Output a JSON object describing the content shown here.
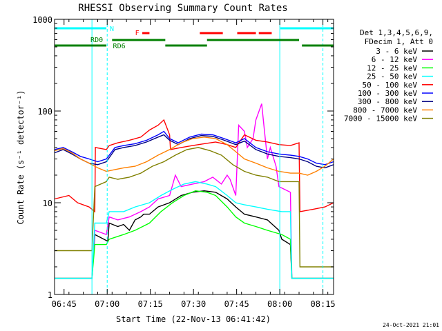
{
  "chart_data": {
    "type": "line",
    "title": "RHESSI Observing Summary Count Rates",
    "xlabel": "Start Time (22-Nov-13 06:41:42)",
    "ylabel": "Count Rate (s⁻¹ detector⁻¹)",
    "yscale": "log",
    "ylim": [
      1,
      1000
    ],
    "xlim_minutes": [
      0,
      97
    ],
    "x_ticks": [
      {
        "label": "06:45",
        "t": 3.3
      },
      {
        "label": "07:00",
        "t": 18.3
      },
      {
        "label": "07:15",
        "t": 33.3
      },
      {
        "label": "07:30",
        "t": 48.3
      },
      {
        "label": "07:45",
        "t": 63.3
      },
      {
        "label": "08:00",
        "t": 78.3
      },
      {
        "label": "08:15",
        "t": 93.3
      }
    ],
    "y_ticks": [
      {
        "label": "1",
        "v": 1
      },
      {
        "label": "10",
        "v": 10
      },
      {
        "label": "100",
        "v": 100
      },
      {
        "label": "1000",
        "v": 1000
      }
    ],
    "legend_header": [
      "Det 1,3,4,5,6,9,",
      "FDecim 1, Att 0"
    ],
    "series": [
      {
        "name": "3 - 6 keV",
        "color": "#000000",
        "values": [
          [
            0,
            1.5
          ],
          [
            13,
            1.5
          ],
          [
            14,
            4.5
          ],
          [
            18.5,
            3.8
          ],
          [
            19,
            6
          ],
          [
            22,
            5.5
          ],
          [
            24,
            5.8
          ],
          [
            26,
            5
          ],
          [
            28,
            6.5
          ],
          [
            30,
            7
          ],
          [
            31,
            7.5
          ],
          [
            33,
            7.5
          ],
          [
            36,
            9
          ],
          [
            40,
            10
          ],
          [
            44,
            12
          ],
          [
            48,
            13
          ],
          [
            52,
            13.5
          ],
          [
            56,
            13
          ],
          [
            60,
            11
          ],
          [
            63,
            9
          ],
          [
            66,
            7.5
          ],
          [
            70,
            7
          ],
          [
            74,
            6.5
          ],
          [
            78,
            5
          ],
          [
            79,
            4
          ],
          [
            82,
            3.5
          ],
          [
            82.5,
            1.5
          ],
          [
            97,
            1.5
          ]
        ]
      },
      {
        "name": "6 - 12 keV",
        "color": "#ff00ff",
        "values": [
          [
            0,
            1.5
          ],
          [
            13,
            1.5
          ],
          [
            14,
            5
          ],
          [
            18,
            4.5
          ],
          [
            19,
            7
          ],
          [
            22,
            6.5
          ],
          [
            26,
            7
          ],
          [
            30,
            8
          ],
          [
            33,
            9
          ],
          [
            36,
            11
          ],
          [
            40,
            12
          ],
          [
            42,
            20
          ],
          [
            44,
            15
          ],
          [
            48,
            16
          ],
          [
            52,
            17
          ],
          [
            55,
            19
          ],
          [
            58,
            16
          ],
          [
            60,
            20
          ],
          [
            61,
            18
          ],
          [
            63,
            12
          ],
          [
            64,
            70
          ],
          [
            66,
            60
          ],
          [
            67,
            40
          ],
          [
            69,
            50
          ],
          [
            70,
            80
          ],
          [
            72,
            120
          ],
          [
            73,
            60
          ],
          [
            74,
            30
          ],
          [
            75,
            40
          ],
          [
            77,
            25
          ],
          [
            78,
            15
          ],
          [
            82,
            13
          ],
          [
            82.5,
            1.5
          ],
          [
            97,
            1.5
          ]
        ]
      },
      {
        "name": "12 - 25 keV",
        "color": "#00ff00",
        "values": [
          [
            0,
            1.5
          ],
          [
            13,
            1.5
          ],
          [
            14,
            3.5
          ],
          [
            18,
            3.5
          ],
          [
            19,
            4
          ],
          [
            24,
            4.5
          ],
          [
            28,
            5
          ],
          [
            33,
            6
          ],
          [
            37,
            8
          ],
          [
            41,
            10
          ],
          [
            45,
            12
          ],
          [
            49,
            13.5
          ],
          [
            53,
            13
          ],
          [
            56,
            12
          ],
          [
            60,
            9
          ],
          [
            63,
            7
          ],
          [
            66,
            6
          ],
          [
            70,
            5.5
          ],
          [
            74,
            5
          ],
          [
            79,
            4.5
          ],
          [
            82,
            4
          ],
          [
            82.5,
            1.5
          ],
          [
            97,
            1.5
          ]
        ]
      },
      {
        "name": "25 - 50 keV",
        "color": "#00ffff",
        "values": [
          [
            0,
            1.5
          ],
          [
            13,
            1.5
          ],
          [
            14,
            6
          ],
          [
            18,
            6
          ],
          [
            19,
            8
          ],
          [
            24,
            8
          ],
          [
            28,
            9
          ],
          [
            33,
            10
          ],
          [
            37,
            12
          ],
          [
            41,
            14
          ],
          [
            45,
            16
          ],
          [
            49,
            17
          ],
          [
            53,
            16
          ],
          [
            56,
            15
          ],
          [
            60,
            12
          ],
          [
            63,
            10
          ],
          [
            66,
            9.5
          ],
          [
            70,
            9
          ],
          [
            74,
            8.5
          ],
          [
            79,
            8
          ],
          [
            82,
            8
          ],
          [
            82.5,
            1.5
          ],
          [
            97,
            1.5
          ]
        ]
      },
      {
        "name": "50 - 100 keV",
        "color": "#ff0000",
        "values": [
          [
            0,
            11
          ],
          [
            5,
            12
          ],
          [
            8,
            10
          ],
          [
            12,
            9
          ],
          [
            14,
            8
          ],
          [
            14.2,
            40
          ],
          [
            18,
            38
          ],
          [
            19,
            42
          ],
          [
            22,
            45
          ],
          [
            26,
            48
          ],
          [
            30,
            52
          ],
          [
            33,
            62
          ],
          [
            36,
            70
          ],
          [
            38,
            80
          ],
          [
            40,
            55
          ],
          [
            40.3,
            38
          ],
          [
            44,
            40
          ],
          [
            48,
            42
          ],
          [
            52,
            44
          ],
          [
            56,
            46
          ],
          [
            60,
            43
          ],
          [
            63,
            40
          ],
          [
            66,
            55
          ],
          [
            70,
            48
          ],
          [
            74,
            46
          ],
          [
            78,
            43
          ],
          [
            82,
            42
          ],
          [
            85,
            45
          ],
          [
            85.3,
            8
          ],
          [
            90,
            8.5
          ],
          [
            94,
            9
          ],
          [
            97,
            10
          ]
        ]
      },
      {
        "name": "100 - 300 keV",
        "color": "#0000ff",
        "values": [
          [
            0,
            38
          ],
          [
            3,
            40
          ],
          [
            6,
            36
          ],
          [
            9,
            32
          ],
          [
            12,
            30
          ],
          [
            15,
            28
          ],
          [
            18,
            30
          ],
          [
            21,
            40
          ],
          [
            24,
            42
          ],
          [
            28,
            44
          ],
          [
            32,
            48
          ],
          [
            36,
            55
          ],
          [
            38,
            60
          ],
          [
            40,
            50
          ],
          [
            43,
            45
          ],
          [
            47,
            52
          ],
          [
            51,
            56
          ],
          [
            55,
            55
          ],
          [
            59,
            50
          ],
          [
            63,
            45
          ],
          [
            66,
            50
          ],
          [
            70,
            40
          ],
          [
            74,
            36
          ],
          [
            78,
            34
          ],
          [
            82,
            33
          ],
          [
            85,
            32
          ],
          [
            88,
            30
          ],
          [
            91,
            27
          ],
          [
            94,
            26
          ],
          [
            97,
            28
          ]
        ]
      },
      {
        "name": "300 - 800 keV",
        "color": "#000080",
        "values": [
          [
            0,
            35
          ],
          [
            3,
            38
          ],
          [
            6,
            34
          ],
          [
            9,
            30
          ],
          [
            12,
            27
          ],
          [
            15,
            26
          ],
          [
            18,
            28
          ],
          [
            21,
            38
          ],
          [
            24,
            40
          ],
          [
            28,
            42
          ],
          [
            32,
            46
          ],
          [
            36,
            52
          ],
          [
            38,
            55
          ],
          [
            40,
            48
          ],
          [
            43,
            43
          ],
          [
            47,
            50
          ],
          [
            51,
            54
          ],
          [
            55,
            53
          ],
          [
            59,
            48
          ],
          [
            63,
            43
          ],
          [
            66,
            47
          ],
          [
            70,
            38
          ],
          [
            74,
            34
          ],
          [
            78,
            32
          ],
          [
            82,
            31
          ],
          [
            85,
            30
          ],
          [
            88,
            28
          ],
          [
            91,
            25
          ],
          [
            94,
            24
          ],
          [
            97,
            26
          ]
        ]
      },
      {
        "name": "800 - 7000 keV",
        "color": "#ff8000",
        "values": [
          [
            0,
            37
          ],
          [
            3,
            39
          ],
          [
            6,
            35
          ],
          [
            9,
            30
          ],
          [
            12,
            27
          ],
          [
            15,
            24
          ],
          [
            18,
            22
          ],
          [
            21,
            23
          ],
          [
            24,
            24
          ],
          [
            28,
            25
          ],
          [
            32,
            28
          ],
          [
            36,
            33
          ],
          [
            40,
            38
          ],
          [
            44,
            45
          ],
          [
            48,
            50
          ],
          [
            52,
            52
          ],
          [
            56,
            50
          ],
          [
            60,
            43
          ],
          [
            63,
            36
          ],
          [
            66,
            30
          ],
          [
            70,
            27
          ],
          [
            74,
            24
          ],
          [
            78,
            22
          ],
          [
            82,
            21
          ],
          [
            85,
            21
          ],
          [
            88,
            20
          ],
          [
            91,
            22
          ],
          [
            94,
            25
          ],
          [
            97,
            30
          ]
        ]
      },
      {
        "name": "7000 - 15000 keV",
        "color": "#808000",
        "values": [
          [
            0,
            3
          ],
          [
            5,
            3
          ],
          [
            8,
            3
          ],
          [
            13,
            3
          ],
          [
            14,
            15
          ],
          [
            18,
            17
          ],
          [
            19,
            19
          ],
          [
            22,
            18
          ],
          [
            26,
            19
          ],
          [
            30,
            21
          ],
          [
            34,
            25
          ],
          [
            38,
            28
          ],
          [
            42,
            33
          ],
          [
            46,
            38
          ],
          [
            50,
            40
          ],
          [
            54,
            37
          ],
          [
            58,
            33
          ],
          [
            62,
            26
          ],
          [
            66,
            22
          ],
          [
            70,
            20
          ],
          [
            74,
            19
          ],
          [
            78,
            17
          ],
          [
            82,
            17
          ],
          [
            85,
            17
          ],
          [
            85.3,
            2
          ],
          [
            94,
            2
          ],
          [
            97,
            2
          ]
        ]
      }
    ],
    "annotations": {
      "attenuator_label": "N",
      "flare_label": "F",
      "rd0_label": "RD0",
      "rd6_label": "RD6"
    },
    "timestamp": "24-Oct-2021 21:01"
  }
}
